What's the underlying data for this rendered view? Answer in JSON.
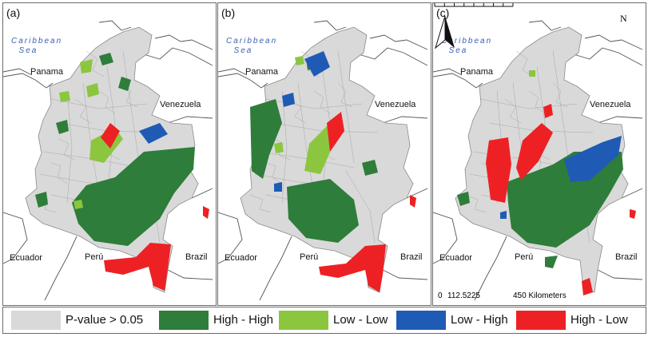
{
  "colors": {
    "not_significant": "#d9d9d9",
    "high_high": "#2e7d3a",
    "low_low": "#8cc63f",
    "low_high": "#1f5bb5",
    "high_low": "#ed2124",
    "land_lines": "#555555",
    "sea_label": "#3a5fb0"
  },
  "panels": [
    {
      "label": "(a)",
      "has_north_arrow": false,
      "has_scale_bar": false
    },
    {
      "label": "(b)",
      "has_north_arrow": false,
      "has_scale_bar": false
    },
    {
      "label": "(c)",
      "has_north_arrow": true,
      "has_scale_bar": true
    }
  ],
  "map_labels": {
    "sea": "Caribbean\n  Sea",
    "panama": "Panama",
    "venezuela": "Venezuela",
    "ecuador": "Ecuador",
    "peru": "Perú",
    "brazil": "Brazil",
    "north": "N"
  },
  "scale_bar": {
    "ticks": [
      "0",
      "112.5225",
      "450 Kilometers"
    ]
  },
  "legend": [
    {
      "label": "P-value > 0.05",
      "color_key": "not_significant"
    },
    {
      "label": "High - High",
      "color_key": "high_high"
    },
    {
      "label": "Low - Low",
      "color_key": "low_low"
    },
    {
      "label": "Low - High",
      "color_key": "low_high"
    },
    {
      "label": "High - Low",
      "color_key": "high_low"
    }
  ]
}
